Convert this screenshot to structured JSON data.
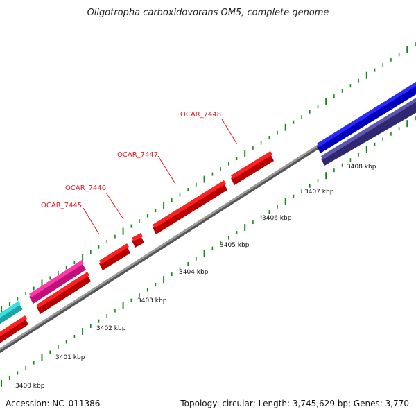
{
  "title": "Oligotropha carboxidovorans OM5, complete genome",
  "footer": {
    "accession": "Accession: NC_011386",
    "summary": "Topology: circular; Length: 3,745,629 bp; Genes: 3,770"
  },
  "scale_labels": [
    "3400 kbp",
    "3401 kbp",
    "3402 kbp",
    "3403 kbp",
    "3404 kbp",
    "3405 kbp",
    "3406 kbp",
    "3407 kbp",
    "3408 kbp"
  ],
  "gene_labels": [
    "OCAR_7445",
    "OCAR_7446",
    "OCAR_7447",
    "OCAR_7448"
  ],
  "colors": {
    "forward_cds": "#ff0000",
    "reverse_cds": "#ff0000",
    "rna_pink": "#ff1493",
    "teal": "#20c8c8",
    "blue": "#0000ff",
    "slate_blue": "#483d8b",
    "backbone": "#8a8a8a",
    "tick": "#138a13",
    "label_red": "#e8141e"
  }
}
